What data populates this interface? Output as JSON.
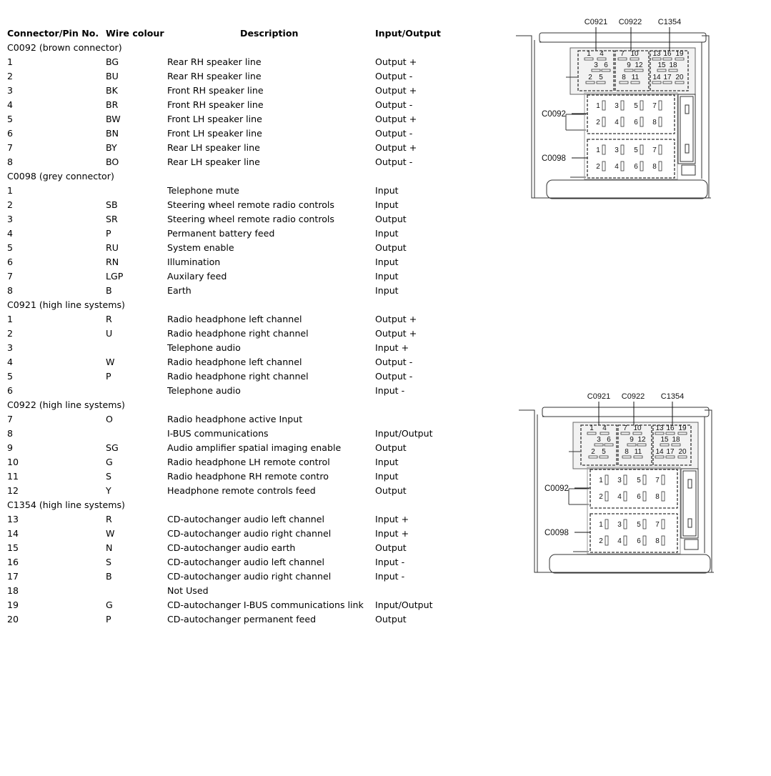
{
  "table": {
    "headers": [
      "Connector/Pin No.",
      "Wire colour",
      "Description",
      "Input/Output"
    ],
    "rows": [
      {
        "group": "C0092 (brown connector)"
      },
      {
        "pin": "1",
        "wire": "BG",
        "desc": "Rear RH speaker line",
        "io": "Output +"
      },
      {
        "pin": "2",
        "wire": "BU",
        "desc": "Rear RH speaker line",
        "io": "Output -"
      },
      {
        "pin": "3",
        "wire": "BK",
        "desc": "Front RH speaker line",
        "io": "Output +"
      },
      {
        "pin": "4",
        "wire": "BR",
        "desc": "Front RH speaker line",
        "io": "Output -"
      },
      {
        "pin": "5",
        "wire": "BW",
        "desc": "Front LH speaker line",
        "io": "Output +"
      },
      {
        "pin": "6",
        "wire": "BN",
        "desc": "Front LH speaker line",
        "io": "Output -"
      },
      {
        "pin": "7",
        "wire": "BY",
        "desc": "Rear LH speaker line",
        "io": "Output +"
      },
      {
        "pin": "8",
        "wire": "BO",
        "desc": "Rear LH speaker line",
        "io": "Output -"
      },
      {
        "group": "C0098 (grey connector)"
      },
      {
        "pin": "1",
        "wire": "",
        "desc": "Telephone mute",
        "io": "Input"
      },
      {
        "pin": "2",
        "wire": "SB",
        "desc": "Steering wheel remote radio controls",
        "io": "Input"
      },
      {
        "pin": "3",
        "wire": "SR",
        "desc": "Steering wheel remote radio controls",
        "io": "Output"
      },
      {
        "pin": "4",
        "wire": "P",
        "desc": "Permanent battery feed",
        "io": "Input"
      },
      {
        "pin": "5",
        "wire": "RU",
        "desc": "System enable",
        "io": "Output"
      },
      {
        "pin": "6",
        "wire": "RN",
        "desc": "Illumination",
        "io": "Input"
      },
      {
        "pin": "7",
        "wire": "LGP",
        "desc": "Auxilary feed",
        "io": "Input"
      },
      {
        "pin": "8",
        "wire": "B",
        "desc": "Earth",
        "io": "Input"
      },
      {
        "group": "C0921 (high line systems)"
      },
      {
        "pin": "1",
        "wire": "R",
        "desc": "Radio headphone left channel",
        "io": "Output +"
      },
      {
        "pin": "2",
        "wire": "U",
        "desc": "Radio headphone right channel",
        "io": "Output +"
      },
      {
        "pin": "3",
        "wire": "",
        "desc": "Telephone audio",
        "io": "Input +"
      },
      {
        "pin": "4",
        "wire": "W",
        "desc": "Radio headphone left channel",
        "io": "Output -"
      },
      {
        "pin": "5",
        "wire": "P",
        "desc": "Radio headphone right channel",
        "io": "Output -"
      },
      {
        "pin": "6",
        "wire": "",
        "desc": "Telephone audio",
        "io": "Input -"
      },
      {
        "group": "C0922 (high line systems)"
      },
      {
        "pin": "7",
        "wire": "O",
        "desc": "Radio headphone active Input",
        "io": ""
      },
      {
        "pin": "8",
        "wire": "",
        "desc": "I-BUS communications",
        "io": "Input/Output"
      },
      {
        "pin": "9",
        "wire": "SG",
        "desc": "Audio amplifier spatial imaging enable",
        "io": "Output"
      },
      {
        "pin": "10",
        "wire": "G",
        "desc": "Radio headphone LH remote control",
        "io": "Input"
      },
      {
        "pin": "11",
        "wire": "S",
        "desc": "Radio headphone RH remote contro",
        "io": "Input"
      },
      {
        "pin": "12",
        "wire": "Y",
        "desc": "Headphone remote controls feed",
        "io": "Output"
      },
      {
        "group": "C1354 (high line systems)"
      },
      {
        "pin": "13",
        "wire": "R",
        "desc": "CD-autochanger audio left channel",
        "io": "Input +"
      },
      {
        "pin": "14",
        "wire": "W",
        "desc": "CD-autochanger audio right channel",
        "io": "Input +"
      },
      {
        "pin": "15",
        "wire": "N",
        "desc": "CD-autochanger audio earth",
        "io": "Output"
      },
      {
        "pin": "16",
        "wire": "S",
        "desc": "CD-autochanger audio left channel",
        "io": "Input -"
      },
      {
        "pin": "17",
        "wire": "B",
        "desc": "CD-autochanger audio right channel",
        "io": "Input -"
      },
      {
        "pin": "18",
        "wire": "",
        "desc": "Not Used",
        "io": ""
      },
      {
        "pin": "19",
        "wire": "G",
        "desc": "CD-autochanger I-BUS communications link",
        "io": "Input/Output"
      },
      {
        "pin": "20",
        "wire": "P",
        "desc": "CD-autochanger permanent feed",
        "io": "Output"
      }
    ]
  },
  "diagram": {
    "labels": {
      "c0921": "C0921",
      "c0922": "C0922",
      "c1354": "C1354",
      "c0092": "C0092",
      "c0098": "C0098"
    },
    "top_pins": {
      "c0921": [
        "1",
        "4",
        "3",
        "6",
        "2",
        "5"
      ],
      "c0922": [
        "7",
        "10",
        "9",
        "12",
        "8",
        "11"
      ],
      "c1354": [
        "13",
        "16",
        "19",
        "15",
        "18",
        "14",
        "17",
        "20"
      ]
    },
    "c0092_pins": [
      "1",
      "3",
      "5",
      "7",
      "2",
      "4",
      "6",
      "8"
    ],
    "c0098_pins": [
      "1",
      "3",
      "5",
      "7",
      "2",
      "4",
      "6",
      "8"
    ]
  }
}
